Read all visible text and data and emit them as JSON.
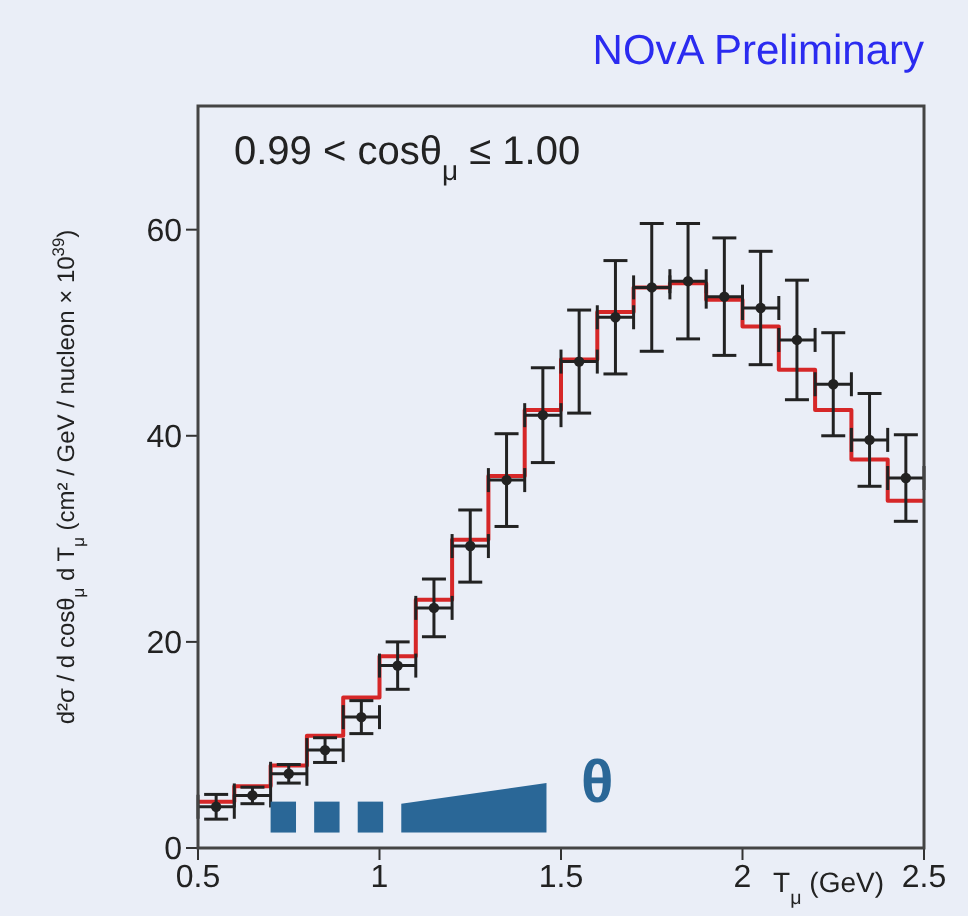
{
  "chart_data": {
    "type": "scatter",
    "title": "NOvA Preliminary",
    "xlabel": "T$_{μ}$ (GeV)",
    "ylabel": "d²σ / d cosθ$_{μ}$ d T$_{μ}$  (cm² / GeV / nucleon × 10$^{39}$)",
    "annotations": [
      "0.99 < cosθ$_{μ}$ ≤ 1.00",
      "θ"
    ],
    "xlim": [
      0.5,
      2.5
    ],
    "xticks": [
      0.5,
      1,
      1.5,
      2,
      2.5
    ],
    "ylim": [
      0,
      72
    ],
    "yticks": [
      0,
      20,
      40,
      60
    ],
    "grid": false,
    "marker": "circle",
    "series": [
      {
        "type": "histogram",
        "color": "#d62728",
        "bins": [
          0.5,
          0.6,
          0.7,
          0.8,
          0.9,
          1.0,
          1.1,
          1.2,
          1.3,
          1.4,
          1.5,
          1.6,
          1.7,
          1.8,
          1.9,
          2.0,
          2.1,
          2.2,
          2.3,
          2.4,
          2.5
        ],
        "values": [
          4.5,
          6.0,
          8.0,
          10.9,
          14.6,
          18.6,
          24.1,
          29.9,
          36.1,
          42.5,
          47.4,
          52.0,
          54.4,
          54.8,
          53.2,
          50.6,
          46.4,
          42.5,
          37.7,
          33.7
        ]
      },
      {
        "color": "#222222",
        "x": [
          0.55,
          0.65,
          0.75,
          0.85,
          0.95,
          1.05,
          1.15,
          1.25,
          1.35,
          1.45,
          1.55,
          1.65,
          1.75,
          1.85,
          1.95,
          2.05,
          2.15,
          2.25,
          2.35,
          2.45
        ],
        "values": [
          4.0,
          5.1,
          7.2,
          9.5,
          12.7,
          17.7,
          23.3,
          29.3,
          35.7,
          42.0,
          47.2,
          51.5,
          54.4,
          55.0,
          53.5,
          52.4,
          49.3,
          45.0,
          39.6,
          35.9
        ],
        "errors": [
          1.2,
          0.8,
          0.9,
          1.2,
          1.6,
          2.3,
          2.8,
          3.5,
          4.5,
          4.6,
          5.0,
          5.5,
          6.2,
          5.6,
          5.7,
          5.5,
          5.8,
          5.0,
          4.5,
          4.2
        ],
        "xerrors": [
          0.05,
          0.05,
          0.05,
          0.05,
          0.05,
          0.05,
          0.05,
          0.05,
          0.05,
          0.05,
          0.05,
          0.05,
          0.05,
          0.05,
          0.05,
          0.05,
          0.05,
          0.05,
          0.05,
          0.05
        ]
      }
    ]
  }
}
